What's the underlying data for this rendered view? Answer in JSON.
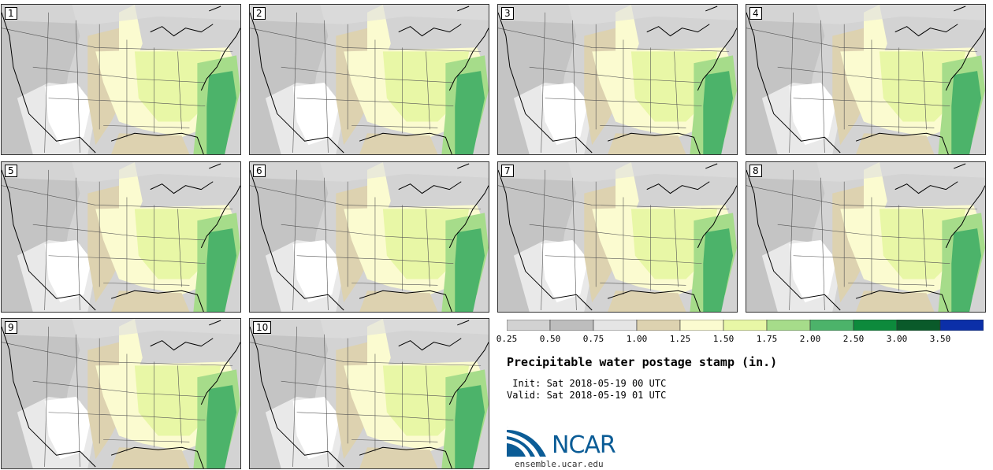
{
  "panels": [
    {
      "label": "1"
    },
    {
      "label": "2"
    },
    {
      "label": "3"
    },
    {
      "label": "4"
    },
    {
      "label": "5"
    },
    {
      "label": "6"
    },
    {
      "label": "7"
    },
    {
      "label": "8"
    },
    {
      "label": "9"
    },
    {
      "label": "10"
    }
  ],
  "colorbar": {
    "bins": [
      {
        "from": 0.25,
        "to": 0.5,
        "color": "#d2d2d2"
      },
      {
        "from": 0.5,
        "to": 0.75,
        "color": "#bdbdbd"
      },
      {
        "from": 0.75,
        "to": 1.0,
        "color": "#e5e5e5"
      },
      {
        "from": 1.0,
        "to": 1.25,
        "color": "#ddd2b0"
      },
      {
        "from": 1.25,
        "to": 1.5,
        "color": "#fbfbd0"
      },
      {
        "from": 1.5,
        "to": 1.75,
        "color": "#e8f7a6"
      },
      {
        "from": 1.75,
        "to": 2.0,
        "color": "#a6dc8a"
      },
      {
        "from": 2.0,
        "to": 2.5,
        "color": "#4cb36a"
      },
      {
        "from": 2.5,
        "to": 3.0,
        "color": "#0d8a3c"
      },
      {
        "from": 3.0,
        "to": 3.5,
        "color": "#0a5a2a"
      },
      {
        "from": 3.5,
        "to": null,
        "color": "#0b2fa8"
      }
    ],
    "tick_labels": [
      "0.25",
      "0.50",
      "0.75",
      "1.00",
      "1.25",
      "1.50",
      "1.75",
      "2.00",
      "2.50",
      "3.00",
      "3.50"
    ]
  },
  "title": "Precipitable water postage stamp (in.)",
  "init_line": " Init: Sat 2018-05-19 00 UTC",
  "valid_line": "Valid: Sat 2018-05-19 01 UTC",
  "logo": {
    "text": "NCAR",
    "color": "#0b5c96"
  },
  "site": "ensemble.ucar.edu"
}
